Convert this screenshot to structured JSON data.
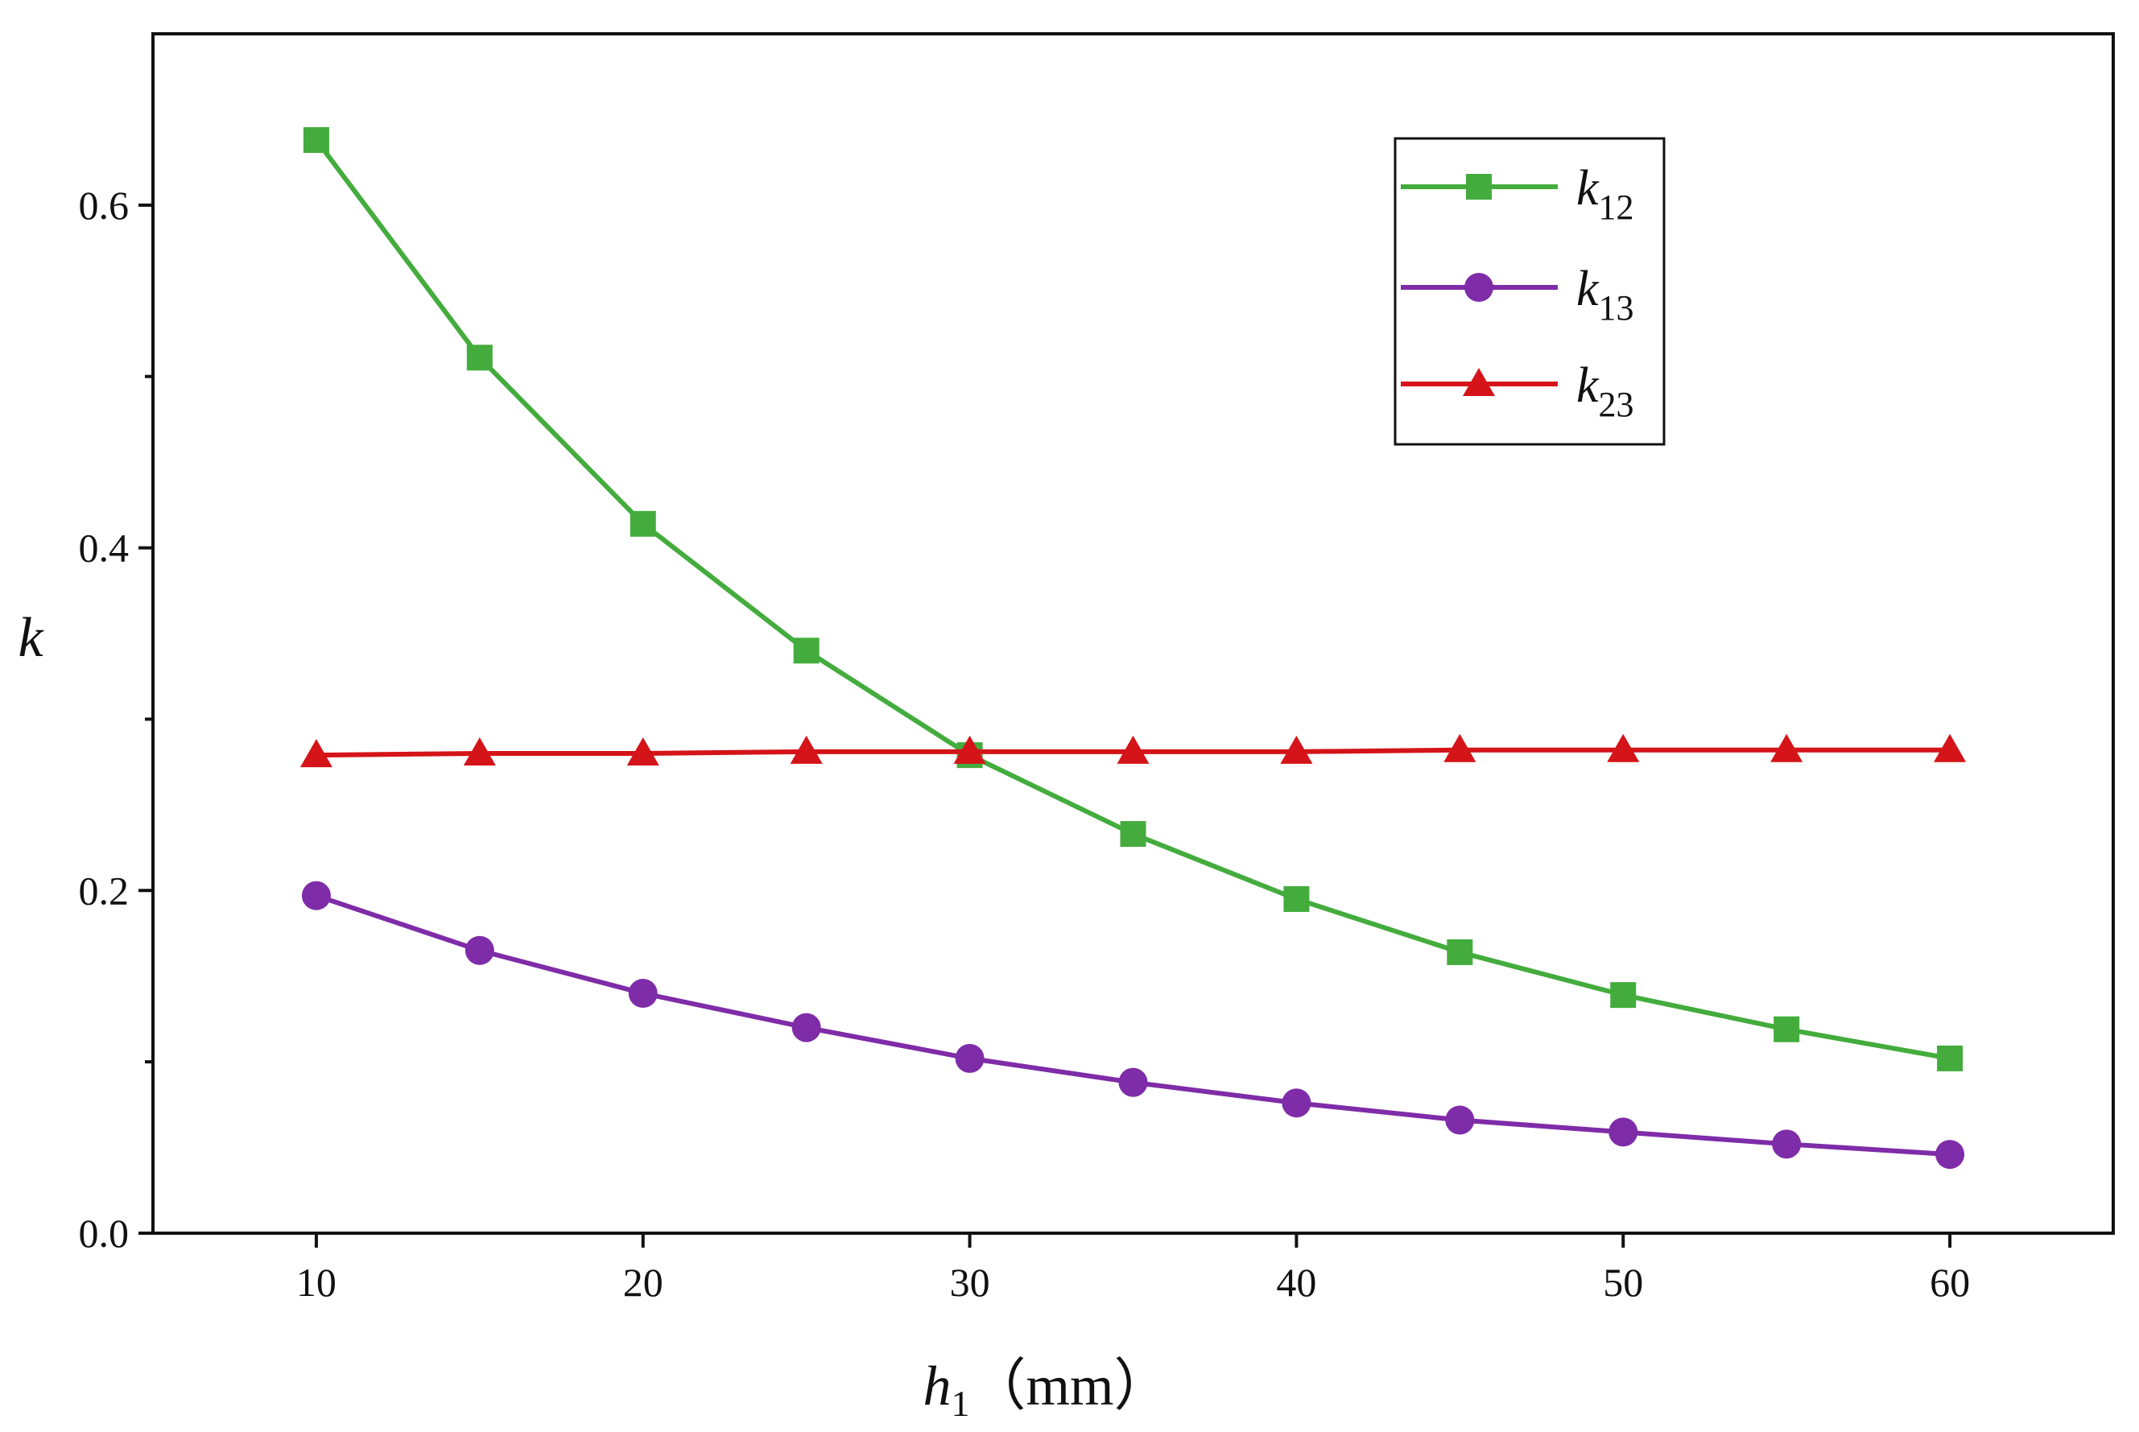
{
  "chart_data": {
    "type": "line",
    "title": "",
    "xlabel": {
      "symbol": "h",
      "subscript": "1",
      "unit": "（mm）"
    },
    "ylabel": "k",
    "x": [
      10,
      15,
      20,
      25,
      30,
      35,
      40,
      45,
      50,
      55,
      60
    ],
    "xlim": [
      5,
      65
    ],
    "ylim": [
      0,
      0.7
    ],
    "xticks": [
      10,
      20,
      30,
      40,
      50,
      60
    ],
    "xtick_labels": [
      "10",
      "20",
      "30",
      "40",
      "50",
      "60"
    ],
    "yticks": [
      0.0,
      0.2,
      0.4,
      0.6
    ],
    "ytick_labels": [
      "0.0",
      "0.2",
      "0.4",
      "0.6"
    ],
    "yminor_ticks": [
      0.1,
      0.3,
      0.5
    ],
    "grid": false,
    "legend_position": "top-right",
    "series": [
      {
        "name": "k12",
        "label_main": "k",
        "label_sub": "12",
        "marker": "square",
        "color": "#43AC3D",
        "values": [
          0.638,
          0.511,
          0.414,
          0.34,
          0.279,
          0.233,
          0.195,
          0.164,
          0.139,
          0.119,
          0.102
        ]
      },
      {
        "name": "k13",
        "label_main": "k",
        "label_sub": "13",
        "marker": "circle",
        "color": "#7F2CA8",
        "values": [
          0.197,
          0.165,
          0.14,
          0.12,
          0.102,
          0.088,
          0.076,
          0.066,
          0.059,
          0.052,
          0.046
        ]
      },
      {
        "name": "k23",
        "label_main": "k",
        "label_sub": "23",
        "marker": "triangle",
        "color": "#D41418",
        "values": [
          0.279,
          0.28,
          0.28,
          0.281,
          0.281,
          0.281,
          0.281,
          0.282,
          0.282,
          0.282,
          0.282
        ]
      }
    ]
  }
}
